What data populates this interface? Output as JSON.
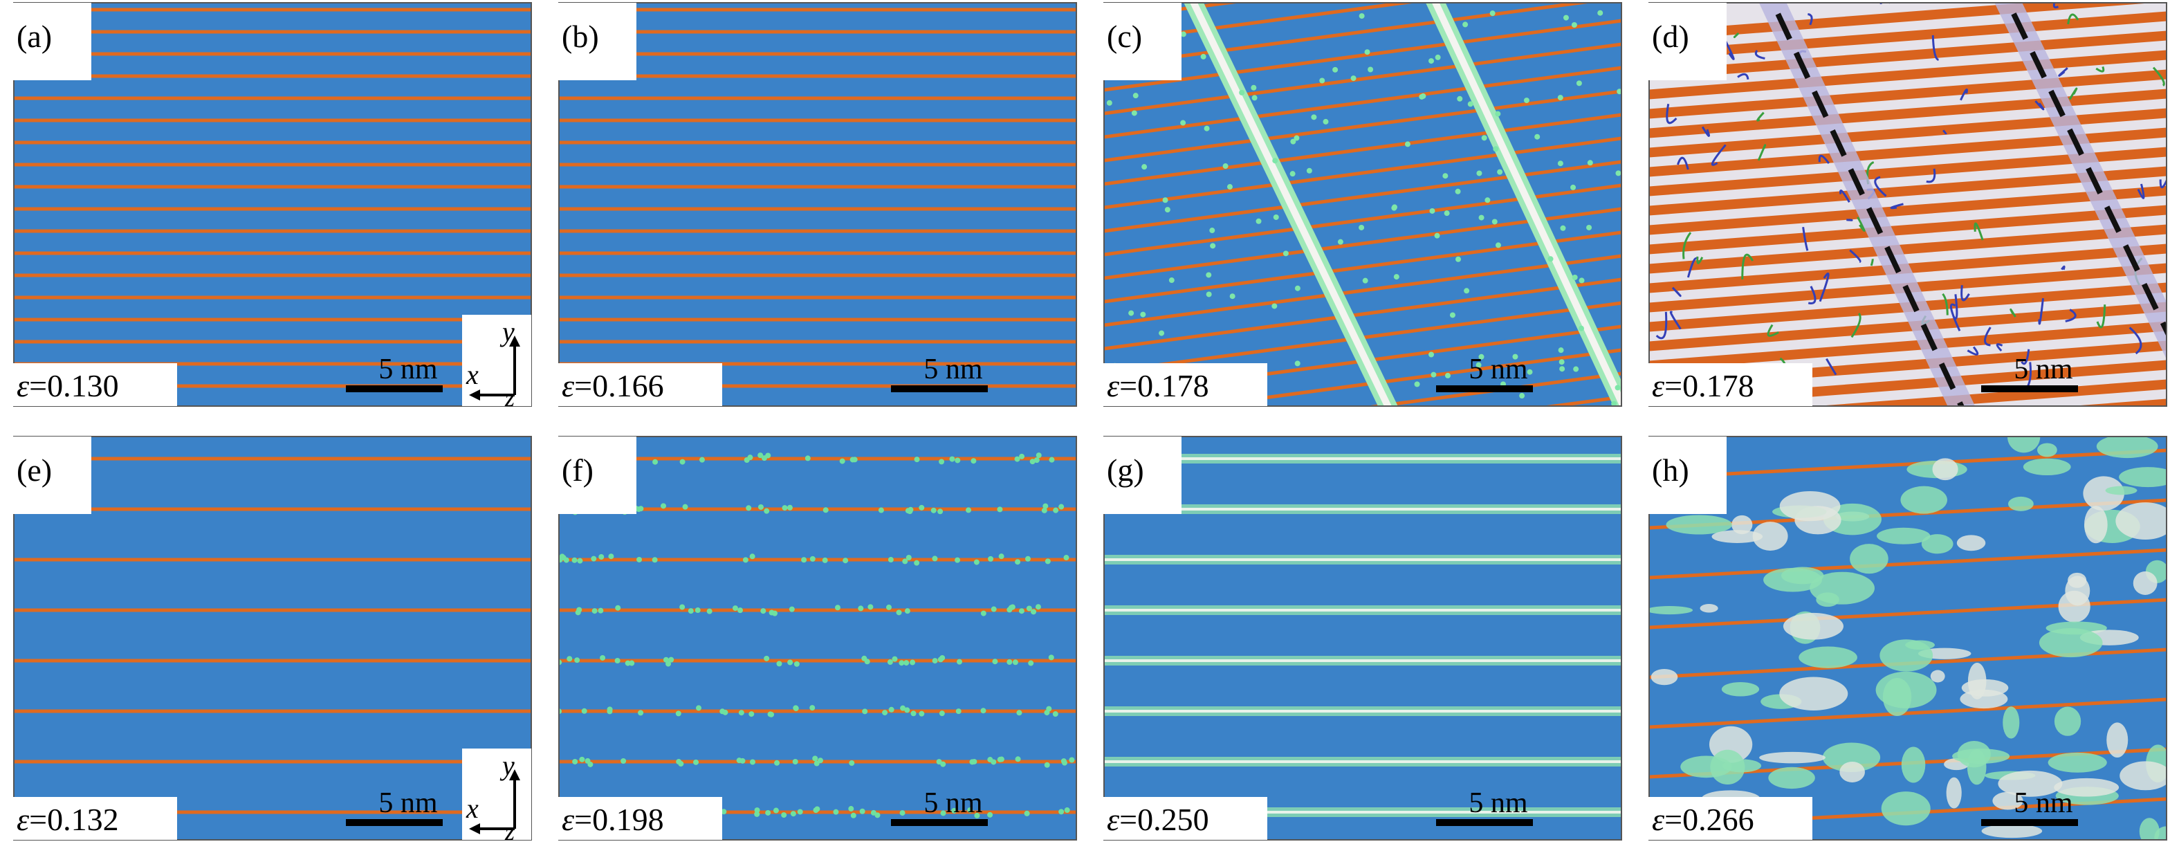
{
  "strain_symbol": "ε",
  "scale_bar": "5 nm",
  "axes": {
    "y": "y",
    "x": "x",
    "z": "z"
  },
  "panels": [
    {
      "label": "(a)",
      "strain": "=0.130"
    },
    {
      "label": "(b)",
      "strain": "=0.166"
    },
    {
      "label": "(c)",
      "strain": "=0.178"
    },
    {
      "label": "(d)",
      "strain": "=0.178"
    },
    {
      "label": "(e)",
      "strain": "=0.132"
    },
    {
      "label": "(f)",
      "strain": "=0.198"
    },
    {
      "label": "(g)",
      "strain": "=0.250"
    },
    {
      "label": "(h)",
      "strain": "=0.266"
    }
  ]
}
